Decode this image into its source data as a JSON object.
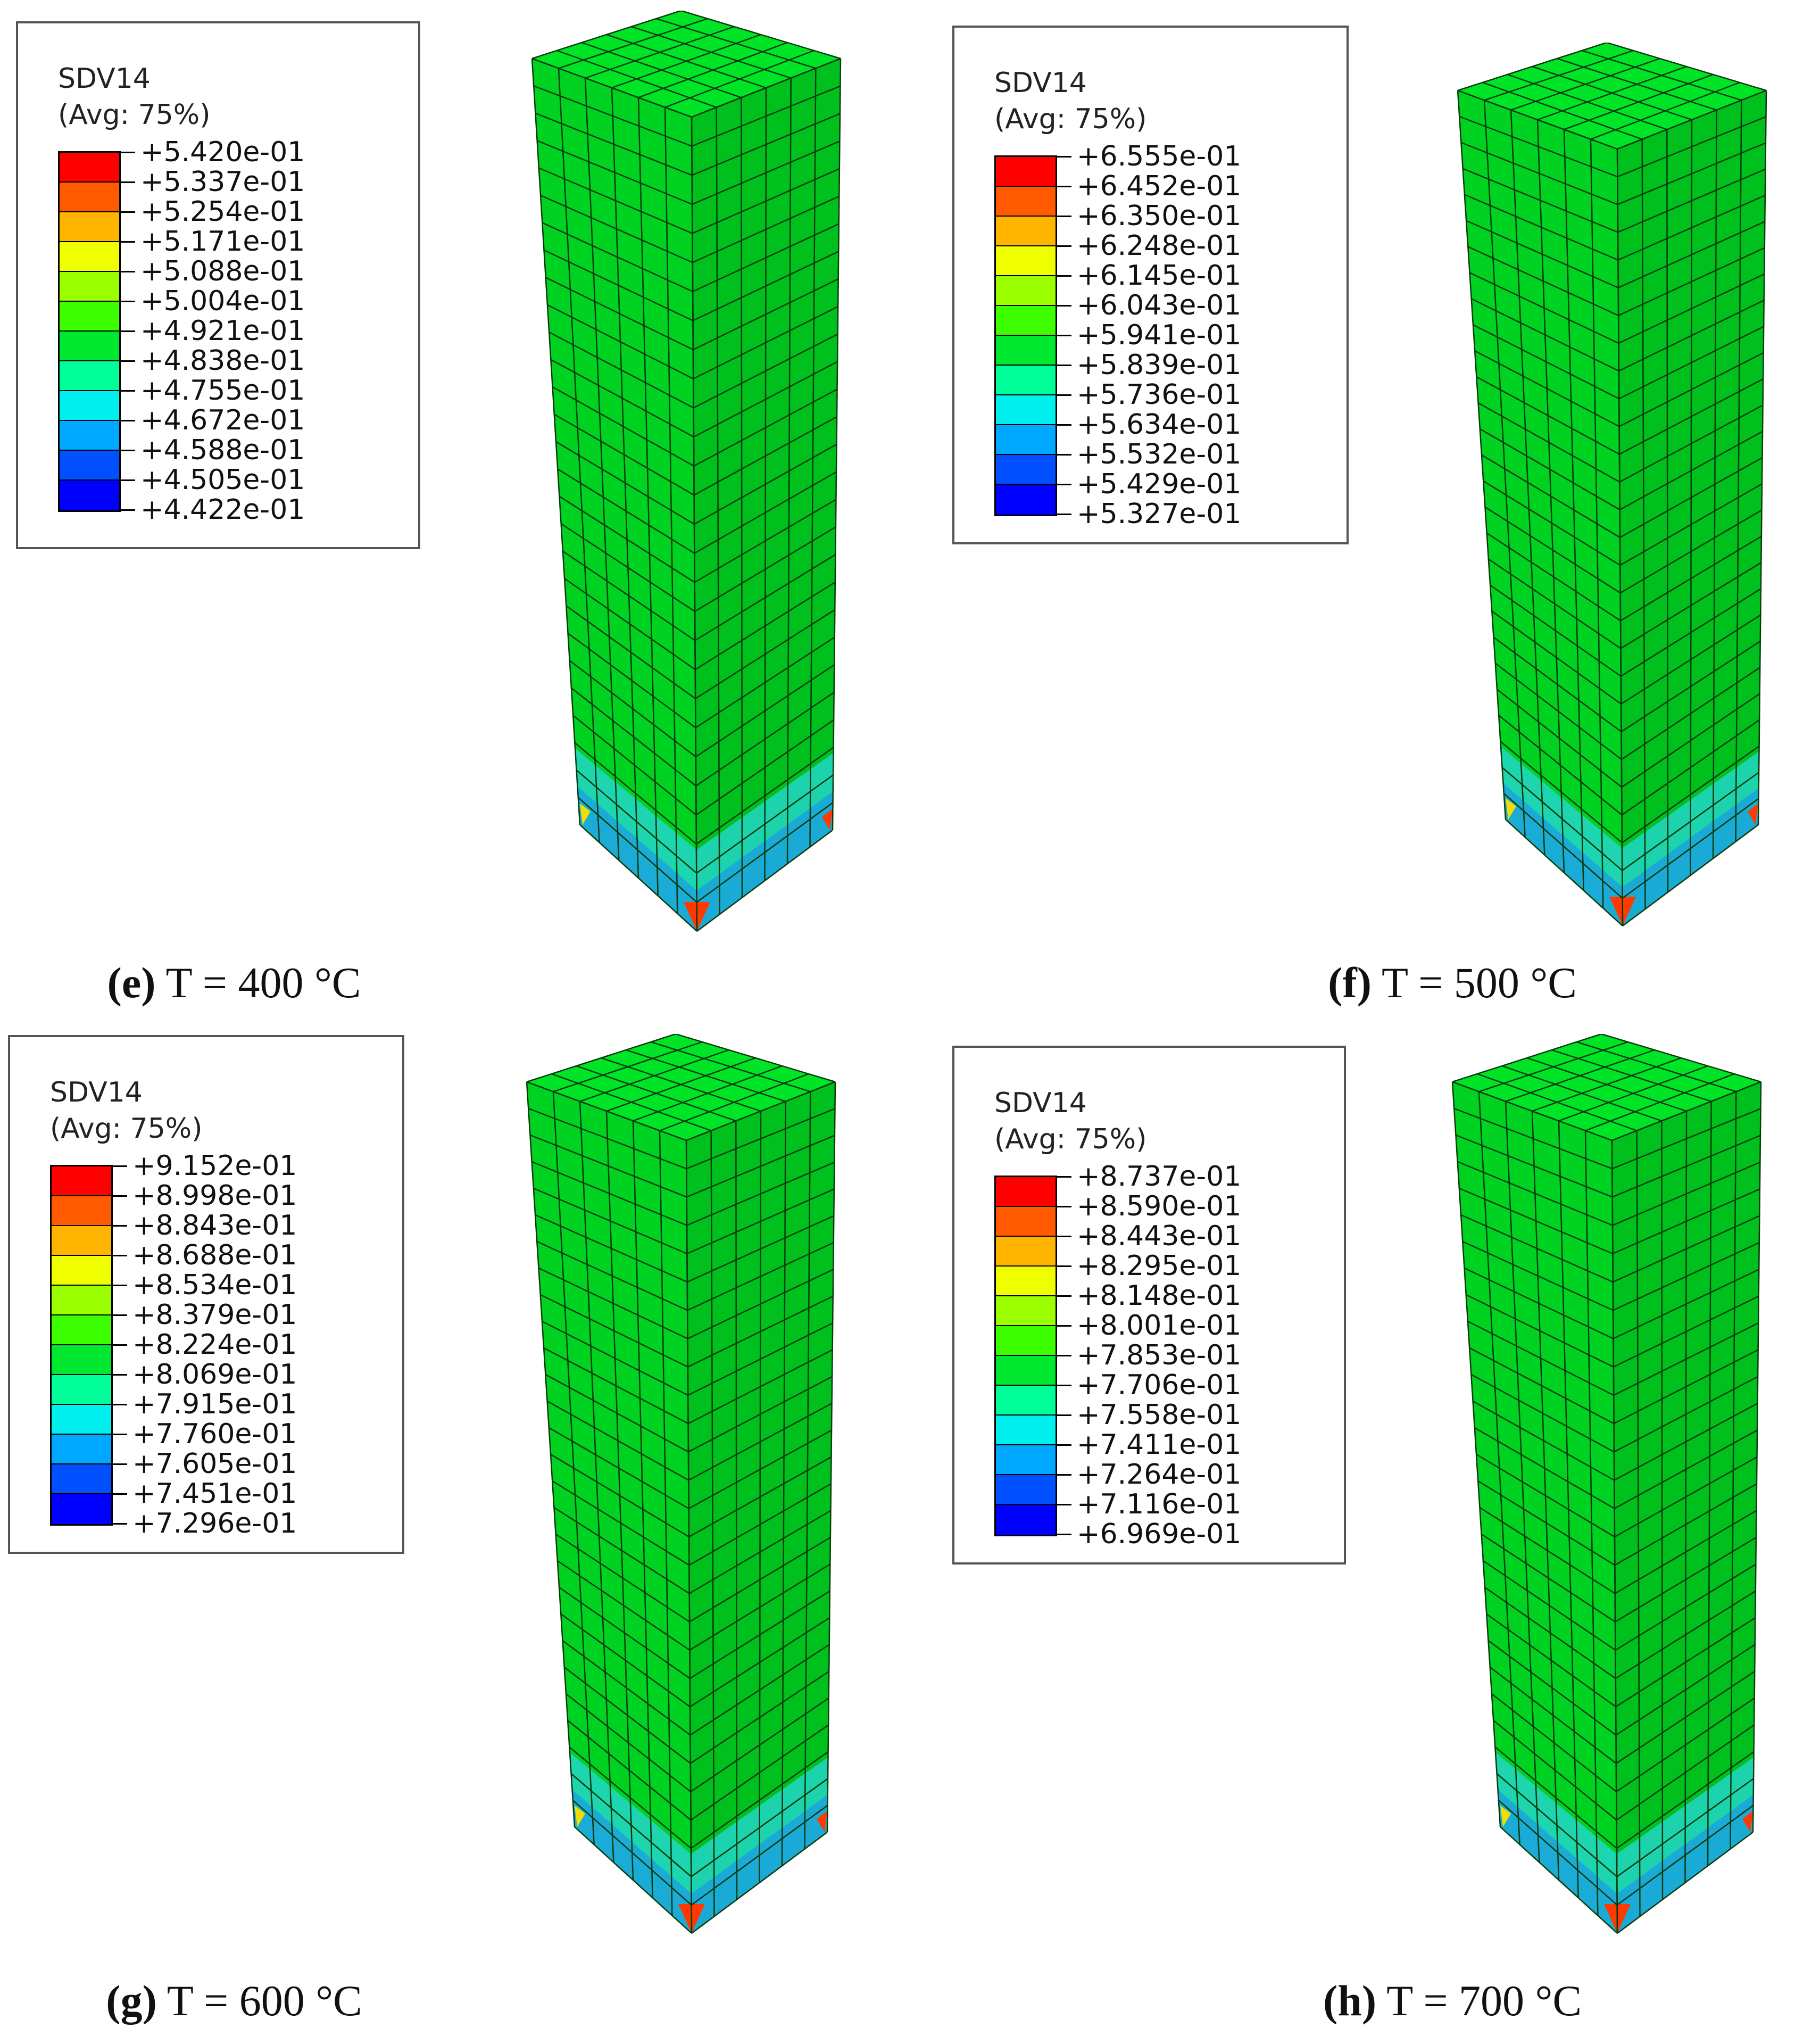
{
  "colors": {
    "scale": [
      "#ff0000",
      "#ff5a00",
      "#ffb400",
      "#f0ff00",
      "#9bff00",
      "#3dff00",
      "#00e830",
      "#00ff99",
      "#00f0f0",
      "#00a8ff",
      "#0050ff",
      "#0000ff"
    ],
    "column_front": "#00d222",
    "column_side": "#00c01e",
    "column_top": "#00e428",
    "mesh": "#0a3a0a",
    "base_cyan": "#22d6c8",
    "base_blue": "#1aa0e0",
    "base_red": "#ff3a00",
    "base_yellow": "#f0e000"
  },
  "panels": [
    {
      "id": "e",
      "legend": {
        "title": "SDV14",
        "subtitle": "(Avg: 75%)",
        "values": [
          "+5.420e-01",
          "+5.337e-01",
          "+5.254e-01",
          "+5.171e-01",
          "+5.088e-01",
          "+5.004e-01",
          "+4.921e-01",
          "+4.838e-01",
          "+4.755e-01",
          "+4.672e-01",
          "+4.588e-01",
          "+4.505e-01",
          "+4.422e-01"
        ]
      },
      "caption": {
        "letter": "e",
        "text": " T = 400 °C"
      }
    },
    {
      "id": "f",
      "legend": {
        "title": "SDV14",
        "subtitle": "(Avg: 75%)",
        "values": [
          "+6.555e-01",
          "+6.452e-01",
          "+6.350e-01",
          "+6.248e-01",
          "+6.145e-01",
          "+6.043e-01",
          "+5.941e-01",
          "+5.839e-01",
          "+5.736e-01",
          "+5.634e-01",
          "+5.532e-01",
          "+5.429e-01",
          "+5.327e-01"
        ]
      },
      "caption": {
        "letter": "f",
        "text": " T = 500 °C"
      }
    },
    {
      "id": "g",
      "legend": {
        "title": "SDV14",
        "subtitle": "(Avg: 75%)",
        "values": [
          "+9.152e-01",
          "+8.998e-01",
          "+8.843e-01",
          "+8.688e-01",
          "+8.534e-01",
          "+8.379e-01",
          "+8.224e-01",
          "+8.069e-01",
          "+7.915e-01",
          "+7.760e-01",
          "+7.605e-01",
          "+7.451e-01",
          "+7.296e-01"
        ]
      },
      "caption": {
        "letter": "g",
        "text": " T = 600 °C"
      }
    },
    {
      "id": "h",
      "legend": {
        "title": "SDV14",
        "subtitle": "(Avg: 75%)",
        "values": [
          "+8.737e-01",
          "+8.590e-01",
          "+8.443e-01",
          "+8.295e-01",
          "+8.148e-01",
          "+8.001e-01",
          "+7.853e-01",
          "+7.706e-01",
          "+7.558e-01",
          "+7.411e-01",
          "+7.264e-01",
          "+7.116e-01",
          "+6.969e-01"
        ]
      },
      "caption": {
        "letter": "h",
        "text": " T = 700 °C"
      }
    }
  ]
}
